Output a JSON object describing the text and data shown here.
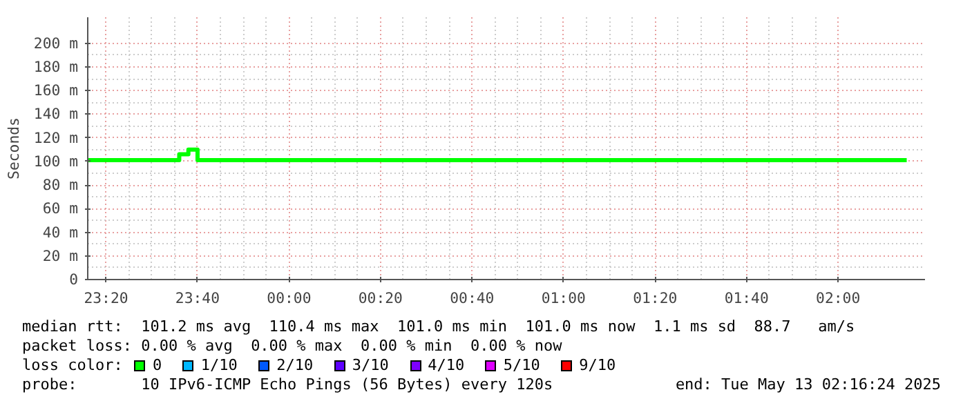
{
  "chart_data": {
    "type": "step",
    "ylabel": "Seconds",
    "x": [
      "2025-05-12T23:16",
      "2025-05-12T23:36",
      "2025-05-12T23:38",
      "2025-05-12T23:40",
      "2025-05-13T02:15"
    ],
    "series": [
      {
        "name": "0",
        "color": "#00ff00",
        "values": [
          101,
          106,
          110,
          101,
          101
        ]
      },
      {
        "name": "1/10",
        "color": "#00b8ff",
        "values": [
          null,
          null,
          null,
          null,
          null
        ]
      },
      {
        "name": "2/10",
        "color": "#0059ff",
        "values": [
          null,
          null,
          null,
          null,
          null
        ]
      },
      {
        "name": "3/10",
        "color": "#5e00ff",
        "values": [
          null,
          null,
          null,
          null,
          null
        ]
      },
      {
        "name": "4/10",
        "color": "#7e00ff",
        "values": [
          null,
          null,
          null,
          null,
          null
        ]
      },
      {
        "name": "5/10",
        "color": "#dd00ff",
        "values": [
          null,
          null,
          null,
          null,
          null
        ]
      },
      {
        "name": "9/10",
        "color": "#ff0000",
        "values": [
          null,
          null,
          null,
          null,
          null
        ]
      }
    ],
    "legend_title": "loss color:",
    "legend": "bottom",
    "xlim": [
      "2025-05-12T23:16",
      "2025-05-13T02:19"
    ],
    "ylim": [
      0,
      222
    ],
    "xticks": [
      {
        "value": "2025-05-12T23:20",
        "label": "23:20"
      },
      {
        "value": "2025-05-12T23:40",
        "label": "23:40"
      },
      {
        "value": "2025-05-13T00:00",
        "label": "00:00"
      },
      {
        "value": "2025-05-13T00:20",
        "label": "00:20"
      },
      {
        "value": "2025-05-13T00:40",
        "label": "00:40"
      },
      {
        "value": "2025-05-13T01:00",
        "label": "01:00"
      },
      {
        "value": "2025-05-13T01:20",
        "label": "01:20"
      },
      {
        "value": "2025-05-13T01:40",
        "label": "01:40"
      },
      {
        "value": "2025-05-13T02:00",
        "label": "02:00"
      }
    ],
    "yticks": [
      0,
      {
        "value": 20,
        "label": "20 m"
      },
      {
        "value": 40,
        "label": "40 m"
      },
      {
        "value": 60,
        "label": "60 m"
      },
      {
        "value": 80,
        "label": "80 m"
      },
      {
        "value": 100,
        "label": "100 m"
      },
      {
        "value": 120,
        "label": "120 m"
      },
      {
        "value": 140,
        "label": "140 m"
      },
      {
        "value": 160,
        "label": "160 m"
      },
      {
        "value": 180,
        "label": "180 m"
      },
      {
        "value": 200,
        "label": "200 m"
      }
    ],
    "grid": true,
    "line_style": "solid",
    "annotations": [
      "median rtt:  101.2 ms avg  110.4 ms max  101.0 ms min  101.0 ms now  1.1 ms sd  88.7   am/s",
      "packet loss: 0.00 % avg  0.00 % max  0.00 % min  0.00 % now",
      "probe:       10 IPv6-ICMP Echo Pings (56 Bytes) every 120s",
      "end: Tue May 13 02:16:24 2025"
    ]
  }
}
